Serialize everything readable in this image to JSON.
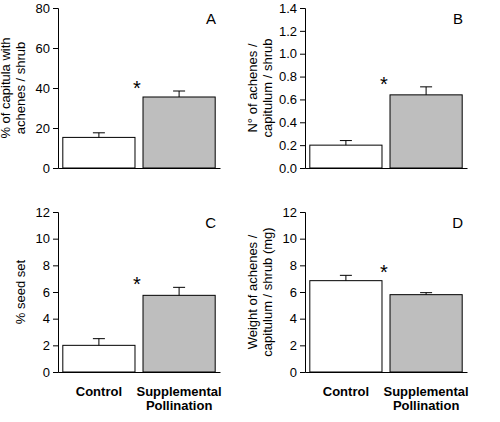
{
  "chart_data": [
    {
      "type": "bar",
      "title": "A",
      "y_label": [
        "% of capitula with",
        "achenes / shrub"
      ],
      "categories": [
        null,
        null
      ],
      "values": [
        15.3,
        35.5
      ],
      "errors": [
        2.3,
        3.0
      ],
      "colors": [
        "#ffffff",
        "#bebebe"
      ],
      "annotation": "*",
      "ylim": [
        0,
        80
      ],
      "yticks": [
        0,
        20,
        40,
        60,
        80
      ]
    },
    {
      "type": "bar",
      "title": "B",
      "y_label": [
        "N° of achenes /",
        "capitulum / shrub"
      ],
      "categories": [
        null,
        null
      ],
      "values": [
        0.2,
        0.64
      ],
      "errors": [
        0.04,
        0.07
      ],
      "colors": [
        "#ffffff",
        "#bebebe"
      ],
      "annotation": "*",
      "ylim": [
        0,
        1.4
      ],
      "yticks": [
        {
          "value": 0,
          "label": "0.0"
        },
        0.2,
        0.4,
        0.6,
        0.8,
        {
          "value": 1,
          "label": "1.0"
        },
        1.2,
        1.4
      ]
    },
    {
      "type": "bar",
      "title": "C",
      "y_label": [
        "% seed set"
      ],
      "categories": [
        "Control",
        "Supplemental Pollination"
      ],
      "values": [
        2.0,
        5.75
      ],
      "errors": [
        0.5,
        0.6
      ],
      "colors": [
        "#ffffff",
        "#bebebe"
      ],
      "annotation": "*",
      "ylim": [
        0,
        12
      ],
      "yticks": [
        0,
        2,
        4,
        6,
        8,
        10,
        12
      ]
    },
    {
      "type": "bar",
      "title": "D",
      "y_label": [
        "Weight of achenes /",
        "capitulum / shrub (mg)"
      ],
      "categories": [
        "Control",
        "Supplemental Pollination"
      ],
      "values": [
        6.85,
        5.8
      ],
      "errors": [
        0.4,
        0.15
      ],
      "colors": [
        "#ffffff",
        "#bebebe"
      ],
      "annotation": "*",
      "ylim": [
        0,
        12
      ],
      "yticks": [
        0,
        2,
        4,
        6,
        8,
        10,
        12
      ]
    }
  ]
}
